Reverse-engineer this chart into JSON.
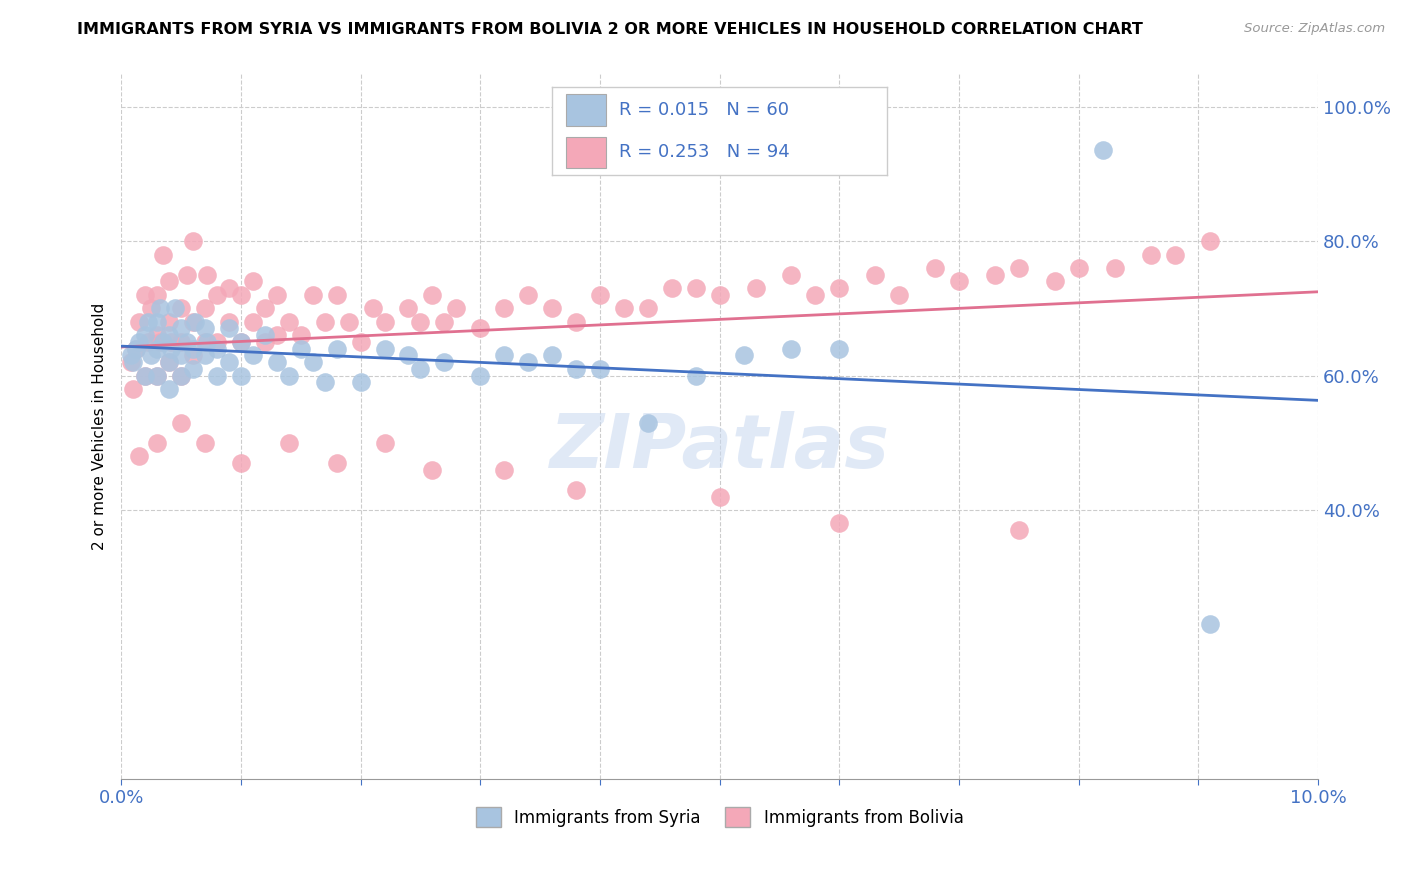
{
  "title": "IMMIGRANTS FROM SYRIA VS IMMIGRANTS FROM BOLIVIA 2 OR MORE VEHICLES IN HOUSEHOLD CORRELATION CHART",
  "source": "Source: ZipAtlas.com",
  "ylabel": "2 or more Vehicles in Household",
  "xlim": [
    0.0,
    0.1
  ],
  "ylim": [
    0.0,
    1.05
  ],
  "watermark": "ZIPatlas",
  "syria_color": "#a8c4e0",
  "bolivia_color": "#f4a8b8",
  "syria_line_color": "#4472c4",
  "bolivia_line_color": "#e07090",
  "syria_R": 0.015,
  "syria_N": 60,
  "bolivia_R": 0.253,
  "bolivia_N": 94,
  "syria_x": [
    0.0008,
    0.001,
    0.0012,
    0.0015,
    0.002,
    0.002,
    0.0022,
    0.0025,
    0.003,
    0.003,
    0.003,
    0.0032,
    0.0035,
    0.004,
    0.004,
    0.004,
    0.0042,
    0.0045,
    0.005,
    0.005,
    0.005,
    0.0055,
    0.006,
    0.006,
    0.0062,
    0.007,
    0.007,
    0.0072,
    0.008,
    0.008,
    0.009,
    0.009,
    0.01,
    0.01,
    0.011,
    0.012,
    0.013,
    0.014,
    0.015,
    0.016,
    0.017,
    0.018,
    0.02,
    0.022,
    0.024,
    0.025,
    0.027,
    0.03,
    0.032,
    0.034,
    0.036,
    0.038,
    0.04,
    0.044,
    0.048,
    0.052,
    0.056,
    0.06,
    0.082,
    0.091
  ],
  "syria_y": [
    0.63,
    0.62,
    0.64,
    0.65,
    0.6,
    0.66,
    0.68,
    0.63,
    0.6,
    0.64,
    0.68,
    0.7,
    0.65,
    0.58,
    0.62,
    0.66,
    0.64,
    0.7,
    0.6,
    0.63,
    0.67,
    0.65,
    0.61,
    0.64,
    0.68,
    0.63,
    0.67,
    0.65,
    0.6,
    0.64,
    0.62,
    0.67,
    0.6,
    0.65,
    0.63,
    0.66,
    0.62,
    0.6,
    0.64,
    0.62,
    0.59,
    0.64,
    0.59,
    0.64,
    0.63,
    0.61,
    0.62,
    0.6,
    0.63,
    0.62,
    0.63,
    0.61,
    0.61,
    0.53,
    0.6,
    0.63,
    0.64,
    0.64,
    0.935,
    0.23
  ],
  "bolivia_x": [
    0.0008,
    0.001,
    0.0012,
    0.0015,
    0.002,
    0.002,
    0.0022,
    0.0025,
    0.003,
    0.003,
    0.003,
    0.0032,
    0.0035,
    0.004,
    0.004,
    0.004,
    0.0042,
    0.005,
    0.005,
    0.005,
    0.0055,
    0.006,
    0.006,
    0.006,
    0.007,
    0.007,
    0.0072,
    0.008,
    0.008,
    0.009,
    0.009,
    0.01,
    0.01,
    0.011,
    0.011,
    0.012,
    0.012,
    0.013,
    0.013,
    0.014,
    0.015,
    0.016,
    0.017,
    0.018,
    0.019,
    0.02,
    0.021,
    0.022,
    0.024,
    0.025,
    0.026,
    0.027,
    0.028,
    0.03,
    0.032,
    0.034,
    0.036,
    0.038,
    0.04,
    0.042,
    0.044,
    0.046,
    0.048,
    0.05,
    0.053,
    0.056,
    0.058,
    0.06,
    0.063,
    0.065,
    0.068,
    0.07,
    0.073,
    0.075,
    0.078,
    0.08,
    0.083,
    0.086,
    0.088,
    0.091,
    0.0015,
    0.003,
    0.005,
    0.007,
    0.01,
    0.014,
    0.018,
    0.022,
    0.026,
    0.032,
    0.038,
    0.05,
    0.06,
    0.075
  ],
  "bolivia_y": [
    0.62,
    0.58,
    0.64,
    0.68,
    0.6,
    0.72,
    0.65,
    0.7,
    0.6,
    0.66,
    0.72,
    0.65,
    0.78,
    0.62,
    0.68,
    0.74,
    0.65,
    0.6,
    0.65,
    0.7,
    0.75,
    0.63,
    0.68,
    0.8,
    0.65,
    0.7,
    0.75,
    0.65,
    0.72,
    0.68,
    0.73,
    0.65,
    0.72,
    0.68,
    0.74,
    0.65,
    0.7,
    0.66,
    0.72,
    0.68,
    0.66,
    0.72,
    0.68,
    0.72,
    0.68,
    0.65,
    0.7,
    0.68,
    0.7,
    0.68,
    0.72,
    0.68,
    0.7,
    0.67,
    0.7,
    0.72,
    0.7,
    0.68,
    0.72,
    0.7,
    0.7,
    0.73,
    0.73,
    0.72,
    0.73,
    0.75,
    0.72,
    0.73,
    0.75,
    0.72,
    0.76,
    0.74,
    0.75,
    0.76,
    0.74,
    0.76,
    0.76,
    0.78,
    0.78,
    0.8,
    0.48,
    0.5,
    0.53,
    0.5,
    0.47,
    0.5,
    0.47,
    0.5,
    0.46,
    0.46,
    0.43,
    0.42,
    0.38,
    0.37
  ]
}
